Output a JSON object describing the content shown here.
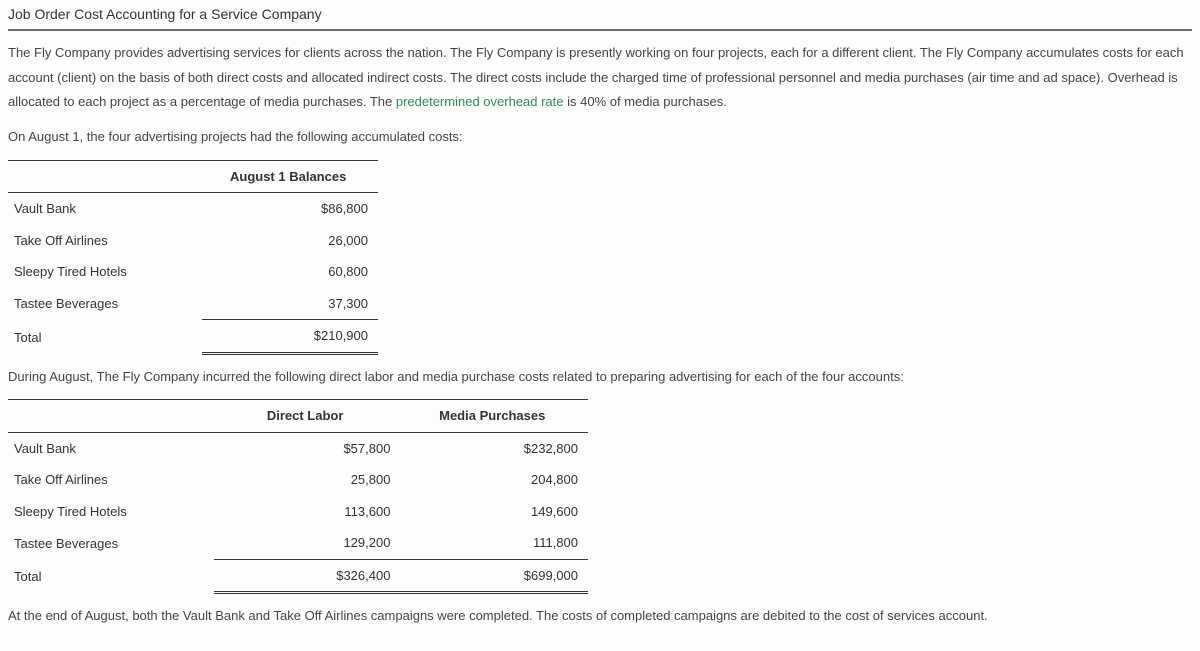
{
  "title": "Job Order Cost Accounting for a Service Company",
  "para1_a": "The Fly Company provides advertising services for clients across the nation. The Fly Company is presently working on four projects, each for a different client. The Fly Company accumulates costs for each account (client) on the basis of both direct costs and allocated indirect costs. The direct costs include the charged time of professional personnel and media purchases (air time and ad space). Overhead is allocated to each project as a percentage of media purchases. The ",
  "para1_link": "predetermined overhead rate",
  "para1_b": " is 40% of media purchases.",
  "para2": "On August 1, the four advertising projects had the following accumulated costs:",
  "table1": {
    "header": "August 1 Balances",
    "rows": [
      {
        "client": "Vault Bank",
        "value": "$86,800"
      },
      {
        "client": "Take Off Airlines",
        "value": "26,000"
      },
      {
        "client": "Sleepy Tired Hotels",
        "value": "60,800"
      },
      {
        "client": "Tastee Beverages",
        "value": "37,300"
      }
    ],
    "total_label": "Total",
    "total_value": "$210,900"
  },
  "para3": "During August, The Fly Company incurred the following direct labor and media purchase costs related to preparing advertising for each of the four accounts:",
  "table2": {
    "headers": [
      "Direct Labor",
      "Media Purchases"
    ],
    "rows": [
      {
        "client": "Vault Bank",
        "labor": "$57,800",
        "media": "$232,800"
      },
      {
        "client": "Take Off Airlines",
        "labor": "25,800",
        "media": "204,800"
      },
      {
        "client": "Sleepy Tired Hotels",
        "labor": "113,600",
        "media": "149,600"
      },
      {
        "client": "Tastee Beverages",
        "labor": "129,200",
        "media": "111,800"
      }
    ],
    "total_label": "Total",
    "total_labor": "$326,400",
    "total_media": "$699,000"
  },
  "para4": "At the end of August, both the Vault Bank and Take Off Airlines campaigns were completed. The costs of completed campaigns are debited to the cost of services account."
}
